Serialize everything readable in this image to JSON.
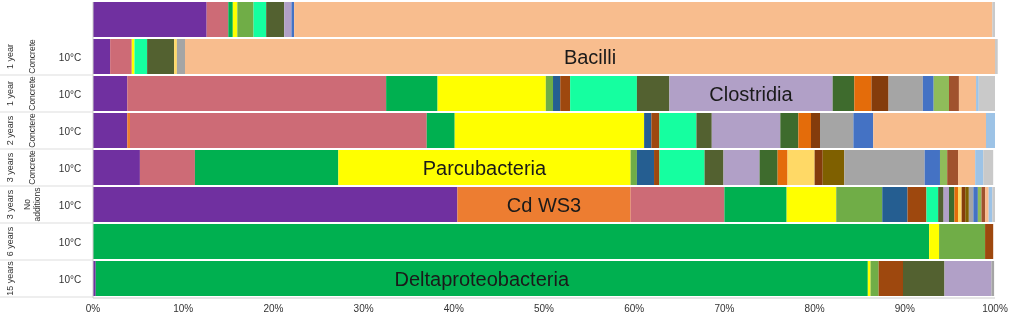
{
  "chart_data": {
    "type": "bar",
    "orientation": "horizontal",
    "stacked": true,
    "categories": [
      null,
      "1 year\nConcrete\n10°C",
      "1 year\nConcrete\n10°C",
      "2 years\nConctere\n10°C",
      "3 years\nConcrete\n10°C",
      "3 years\nNo additions\n10°C",
      "6 years\n\n10°C",
      "15 years\n\n10°C"
    ],
    "xlim": [
      0,
      100
    ],
    "xticks": [
      {
        "value": 0,
        "label": "0%"
      },
      {
        "value": 10,
        "label": "10%"
      },
      {
        "value": 20,
        "label": "20%"
      },
      {
        "value": 30,
        "label": "30%"
      },
      {
        "value": 40,
        "label": "40%"
      },
      {
        "value": 50,
        "label": "50%"
      },
      {
        "value": 60,
        "label": "60%"
      },
      {
        "value": 70,
        "label": "70%"
      },
      {
        "value": 80,
        "label": "80%"
      },
      {
        "value": 90,
        "label": "90%"
      },
      {
        "value": 100,
        "label": "100%"
      }
    ],
    "series": [
      {
        "color": "#7030a0",
        "values": [
          12.6,
          1.9,
          3.8,
          3.8,
          5.2,
          40.4,
          0,
          0.3
        ]
      },
      {
        "name": "Cd WS3",
        "color": "#ed7d31",
        "values": [
          0,
          0,
          0,
          0.3,
          0,
          19.2,
          0,
          0
        ]
      },
      {
        "color": "#cd6b76",
        "values": [
          2.4,
          2.4,
          28.7,
          32.9,
          6.1,
          10.4,
          0,
          0
        ]
      },
      {
        "name": "Deltaproteobacteria",
        "color": "#00b050",
        "values": [
          0.5,
          0,
          5.7,
          3.1,
          15.9,
          6.9,
          92.7,
          85.6
        ]
      },
      {
        "name": "Parcubacteria",
        "color": "#ffff00",
        "values": [
          0.5,
          0.3,
          12.0,
          21.0,
          32.4,
          5.5,
          1.1,
          0.3
        ]
      },
      {
        "color": "#70ad47",
        "values": [
          1.8,
          0,
          0.8,
          0,
          0.7,
          5.1,
          5.1,
          0.9
        ]
      },
      {
        "color": "#255e91",
        "values": [
          0,
          0,
          0.8,
          0.8,
          1.9,
          2.8,
          0,
          0
        ]
      },
      {
        "color": "#9e480e",
        "values": [
          0,
          0,
          1.1,
          0.9,
          0.6,
          2.1,
          0.9,
          2.7
        ]
      },
      {
        "color": "#15ffa0",
        "values": [
          1.4,
          1.4,
          7.4,
          4.1,
          5.0,
          1.3,
          0,
          0
        ]
      },
      {
        "color": "#536130",
        "values": [
          2.0,
          3.0,
          3.6,
          1.7,
          2.1,
          0.6,
          0,
          4.6
        ]
      },
      {
        "name": "Clostridia",
        "color": "#b1a0c7",
        "values": [
          0.8,
          0,
          18.1,
          7.6,
          4.0,
          0.6,
          0,
          5.2
        ]
      },
      {
        "color": "#3e6b2d",
        "values": [
          0,
          0,
          2.4,
          2.0,
          2.0,
          0.6,
          0,
          0
        ]
      },
      {
        "color": "#e46c0a",
        "values": [
          0,
          0,
          1.9,
          1.4,
          1.1,
          0.4,
          0,
          0
        ]
      },
      {
        "color": "#ffd966",
        "values": [
          0,
          0.3,
          0,
          0,
          3.0,
          0.4,
          0,
          0
        ]
      },
      {
        "color": "#843c0c",
        "values": [
          0,
          0,
          1.9,
          1.0,
          0.9,
          0.4,
          0,
          0
        ]
      },
      {
        "color": "#7f6000",
        "values": [
          0,
          0,
          0,
          0,
          2.4,
          0.4,
          0,
          0
        ]
      },
      {
        "color": "#a5a5a5",
        "values": [
          0,
          0.9,
          3.8,
          3.7,
          8.9,
          0.5,
          0,
          0.3
        ]
      },
      {
        "color": "#4472c4",
        "values": [
          0.3,
          0,
          1.2,
          2.2,
          1.7,
          0.5,
          0,
          0
        ]
      },
      {
        "color": "#8fbc5a",
        "values": [
          0,
          0,
          1.7,
          0,
          0.8,
          0.4,
          0,
          0
        ]
      },
      {
        "color": "#a0522d",
        "values": [
          0,
          0,
          1.1,
          0,
          1.2,
          0.4,
          0,
          0
        ]
      },
      {
        "name": "Bacilli",
        "color": "#f8bd8e",
        "values": [
          77.4,
          89.8,
          1.9,
          12.5,
          1.9,
          0.4,
          0,
          0
        ]
      },
      {
        "color": "#9dc3e6",
        "values": [
          0,
          0,
          0.3,
          1.0,
          0.9,
          0.4,
          0,
          0
        ]
      },
      {
        "color": "#c9c9c9",
        "values": [
          0.3,
          0.3,
          1.8,
          0,
          1.1,
          0.3,
          0,
          0
        ]
      }
    ]
  }
}
